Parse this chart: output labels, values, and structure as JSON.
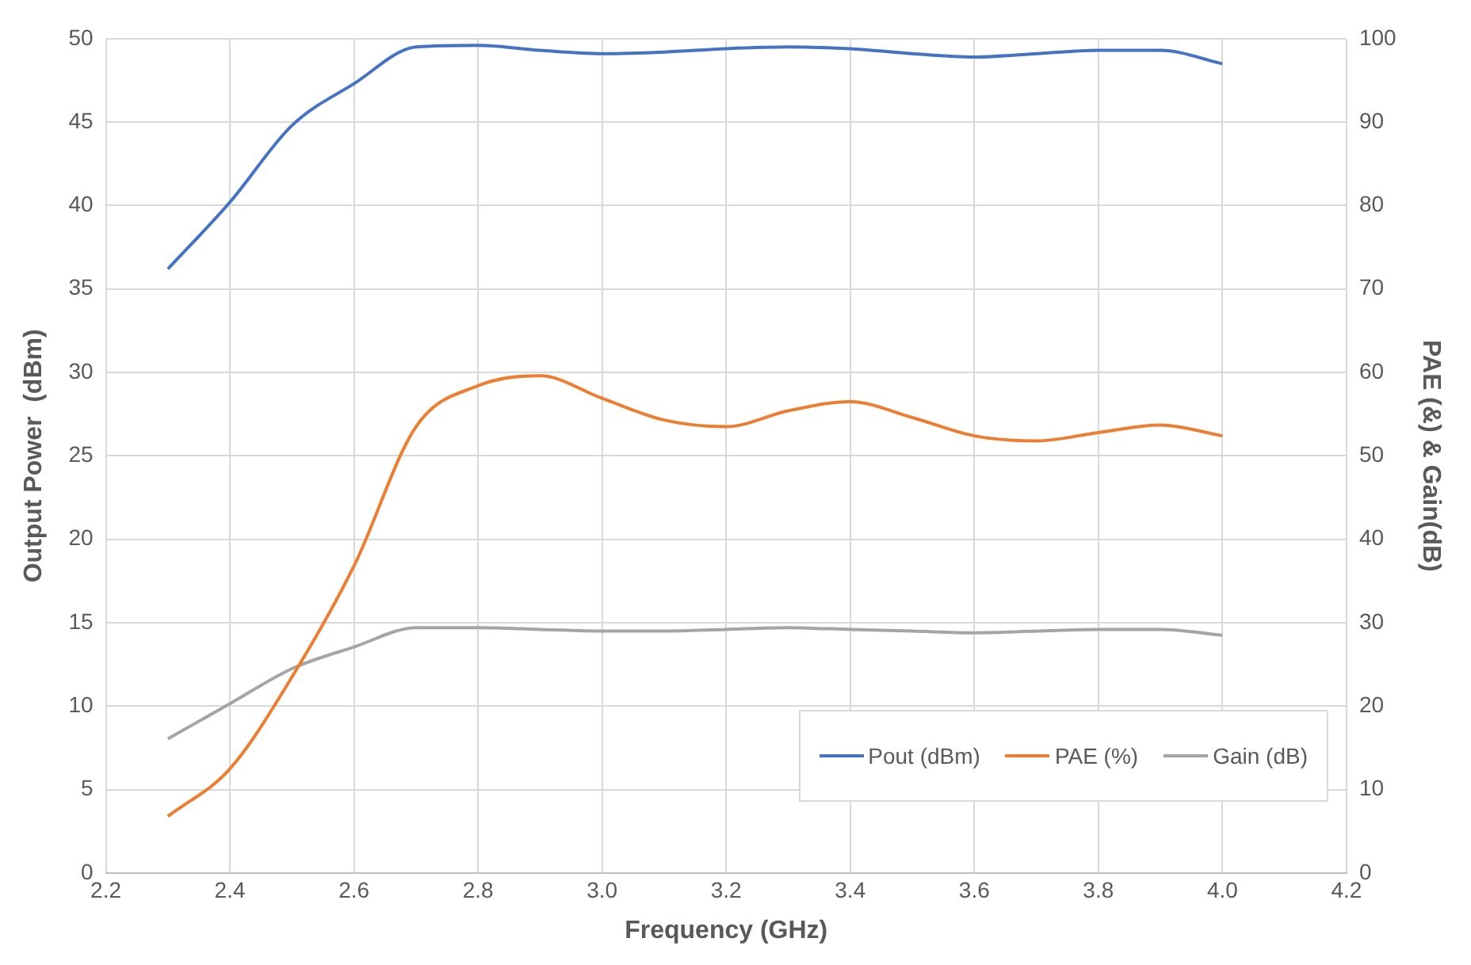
{
  "chart_data": {
    "type": "line",
    "xlabel": "Frequency (GHz)",
    "ylabel": "Output Power  (dBm)",
    "y2label": "PAE (&) & Gain(dB)",
    "x": [
      2.3,
      2.4,
      2.5,
      2.6,
      2.7,
      2.8,
      2.9,
      3.0,
      3.1,
      3.2,
      3.3,
      3.4,
      3.5,
      3.6,
      3.7,
      3.8,
      3.9,
      4.0
    ],
    "series": [
      {
        "name": "Pout (dBm)",
        "color": "#4472c4",
        "values": [
          36.2,
          40.2,
          44.8,
          47.3,
          49.5,
          49.6,
          49.3,
          49.1,
          49.2,
          49.4,
          49.5,
          49.4,
          49.1,
          48.9,
          49.1,
          49.3,
          49.3,
          48.5
        ]
      },
      {
        "name": "PAE (%)",
        "color": "#ed7d31",
        "axis": "y2",
        "values": [
          6.8,
          12.5,
          23.5,
          36.8,
          53.5,
          58.4,
          59.6,
          56.9,
          54.3,
          53.5,
          55.4,
          56.5,
          54.6,
          52.4,
          51.8,
          52.8,
          53.7,
          52.4
        ]
      },
      {
        "name": "Gain (dB)",
        "color": "#a5a5a5",
        "axis": "y2",
        "values": [
          16.1,
          20.3,
          24.5,
          27.1,
          29.4,
          29.4,
          29.2,
          29.0,
          29.0,
          29.2,
          29.4,
          29.2,
          29.0,
          28.8,
          29.0,
          29.2,
          29.2,
          28.5
        ]
      }
    ],
    "xlim": [
      2.2,
      4.2
    ],
    "xticks": [
      {
        "value": 2.2,
        "label": "2.2"
      },
      {
        "value": 2.4,
        "label": "2.4"
      },
      {
        "value": 2.6,
        "label": "2.6"
      },
      {
        "value": 2.8,
        "label": "2.8"
      },
      {
        "value": 3.0,
        "label": "3.0"
      },
      {
        "value": 3.2,
        "label": "3.2"
      },
      {
        "value": 3.4,
        "label": "3.4"
      },
      {
        "value": 3.6,
        "label": "3.6"
      },
      {
        "value": 3.8,
        "label": "3.8"
      },
      {
        "value": 4.0,
        "label": "4.0"
      },
      {
        "value": 4.2,
        "label": "4.2"
      }
    ],
    "ylim": [
      0,
      50
    ],
    "yticks": [
      0,
      5,
      10,
      15,
      20,
      25,
      30,
      35,
      40,
      45,
      50
    ],
    "y2lim": [
      0,
      100
    ],
    "y2ticks": [
      0,
      10,
      20,
      30,
      40,
      50,
      60,
      70,
      80,
      90,
      100
    ],
    "grid": true,
    "legend": "bottom right",
    "marker": "none",
    "line_style": "solid"
  }
}
